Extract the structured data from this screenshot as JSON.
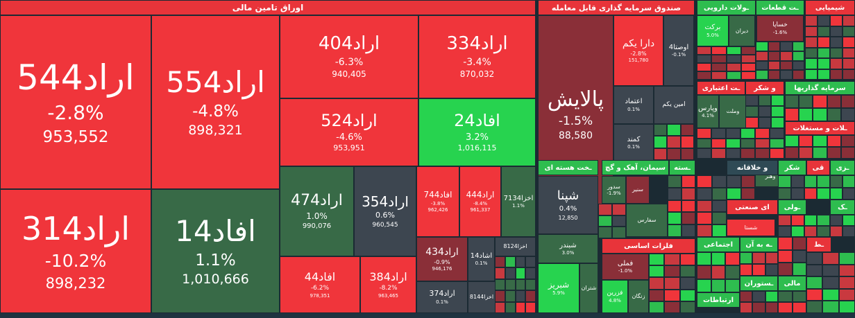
{
  "colors": {
    "strong_red": "#f0353b",
    "red": "#c9393f",
    "dark_red": "#8a2f38",
    "neutral": "#3d4650",
    "dark_green": "#386a47",
    "green": "#2ebd4f",
    "bright_green": "#27d34f"
  },
  "sectors": [
    {
      "name": "اوراق تامین مالی"
    },
    {
      "name": "صندوق سرمایه گذاری قابل معامله"
    },
    {
      "name": "ـولات دارویی"
    },
    {
      "name": "ـت قطعات"
    },
    {
      "name": "شیمیایی"
    },
    {
      "name": "ـت اعتباری"
    },
    {
      "name": "و شکر"
    },
    {
      "name": "سرمایه گذاریها"
    },
    {
      "name": "ـلات و مستغلات"
    },
    {
      "name": "ـخت هسته ای"
    },
    {
      "name": "سیمان، آهک و گچ"
    },
    {
      "name": "ـسته"
    },
    {
      "name": "و خلاقانه"
    },
    {
      "name": "شکر"
    },
    {
      "name": "قی"
    },
    {
      "name": "ـزی"
    },
    {
      "name": "ای صنعتی"
    },
    {
      "name": "ـک"
    },
    {
      "name": "ـولی"
    },
    {
      "name": "فلزات اساسی"
    },
    {
      "name": "اجتماعی"
    },
    {
      "name": "ـه به آن"
    },
    {
      "name": "ـط"
    },
    {
      "name": "ارتباطات"
    },
    {
      "name": "ـستوران"
    },
    {
      "name": "مالی"
    }
  ],
  "chart_data": {
    "type": "treemap",
    "title": "",
    "items": [
      {
        "symbol": "اراد544",
        "change": "-2.8%",
        "value": "953,552"
      },
      {
        "symbol": "اراد554",
        "change": "-4.8%",
        "value": "898,321"
      },
      {
        "symbol": "اراد314",
        "change": "-10.2%",
        "value": "898,232"
      },
      {
        "symbol": "افاد14",
        "change": "1.1%",
        "value": "1,010,666"
      },
      {
        "symbol": "اراد404",
        "change": "-6.3%",
        "value": "940,405"
      },
      {
        "symbol": "اراد334",
        "change": "-3.4%",
        "value": "870,032"
      },
      {
        "symbol": "اراد524",
        "change": "-4.6%",
        "value": "953,951"
      },
      {
        "symbol": "افاد24",
        "change": "3.2%",
        "value": "1,016,115"
      },
      {
        "symbol": "اراد474",
        "change": "1.0%",
        "value": "990,076"
      },
      {
        "symbol": "اراد354",
        "change": "0.6%",
        "value": "960,545"
      },
      {
        "symbol": "افاد744",
        "change": "-3.8%",
        "value": "962,426"
      },
      {
        "symbol": "اراد444",
        "change": "-8.4%",
        "value": "961,337"
      },
      {
        "symbol": "اخزا7134",
        "change": "1.1%",
        "value": ""
      },
      {
        "symbol": "اراد434",
        "change": "-0.9%",
        "value": "946,176"
      },
      {
        "symbol": "اشاد14",
        "change": "0.1%",
        "value": ""
      },
      {
        "symbol": "اخزا8124",
        "change": "",
        "value": ""
      },
      {
        "symbol": "افاد44",
        "change": "-6.2%",
        "value": "978,351"
      },
      {
        "symbol": "اراد384",
        "change": "-8.2%",
        "value": "963,465"
      },
      {
        "symbol": "اراد374",
        "change": "0.1%",
        "value": ""
      },
      {
        "symbol": "اخزا8144",
        "change": "",
        "value": ""
      },
      {
        "symbol": "پالایش",
        "change": "-1.5%",
        "value": "88,580"
      },
      {
        "symbol": "دارا یکم",
        "change": "-2.8%",
        "value": "151,780"
      },
      {
        "symbol": "اوصتا4",
        "change": "-0.1%",
        "value": ""
      },
      {
        "symbol": "اعتماد",
        "change": "0.1%",
        "value": ""
      },
      {
        "symbol": "امین یکم",
        "change": "",
        "value": ""
      },
      {
        "symbol": "کمند",
        "change": "0.1%",
        "value": ""
      },
      {
        "symbol": "برکت",
        "change": "5.0%",
        "value": ""
      },
      {
        "symbol": "دیران",
        "change": "",
        "value": ""
      },
      {
        "symbol": "خساپا",
        "change": "-1.6%",
        "value": ""
      },
      {
        "symbol": "وپارس",
        "change": "4.1%",
        "value": ""
      },
      {
        "symbol": "وملت",
        "change": "",
        "value": ""
      },
      {
        "symbol": "شپنا",
        "change": "0.4%",
        "value": "12,850"
      },
      {
        "symbol": "شبندر",
        "change": "3.0%",
        "value": ""
      },
      {
        "symbol": "شبریز",
        "change": "5.9%",
        "value": ""
      },
      {
        "symbol": "شتران",
        "change": "",
        "value": ""
      },
      {
        "symbol": "سدور",
        "change": "-1.9%",
        "value": ""
      },
      {
        "symbol": "سنیر",
        "change": "",
        "value": ""
      },
      {
        "symbol": "سفارس",
        "change": "",
        "value": ""
      },
      {
        "symbol": "فملی",
        "change": "-1.0%",
        "value": ""
      },
      {
        "symbol": "فزرین",
        "change": "4.8%",
        "value": ""
      },
      {
        "symbol": "زنگان",
        "change": "",
        "value": ""
      },
      {
        "symbol": "وهنر",
        "change": "",
        "value": ""
      },
      {
        "symbol": "شستا",
        "change": "",
        "value": ""
      }
    ]
  }
}
